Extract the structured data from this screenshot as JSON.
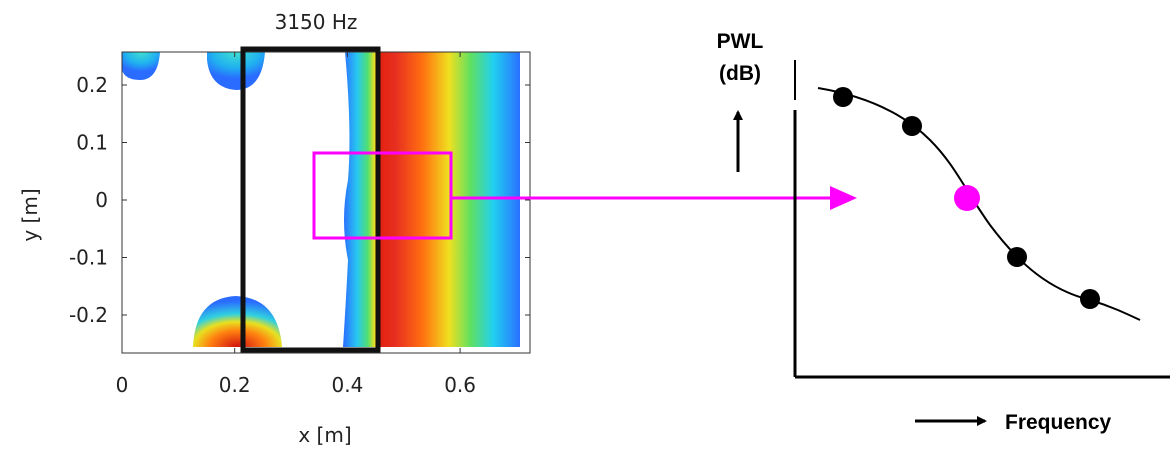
{
  "left_plot": {
    "title": "3150 Hz",
    "x_label": "x [m]",
    "y_label": "y [m]",
    "x_ticks": [
      "0",
      "0.2",
      "0.4",
      "0.6"
    ],
    "y_ticks": [
      "0.2",
      "0.1",
      "0",
      "-0.1",
      "-0.2"
    ]
  },
  "right_plot": {
    "y_label_line1": "PWL",
    "y_label_line2": "(dB)",
    "x_label": "Frequency"
  }
}
